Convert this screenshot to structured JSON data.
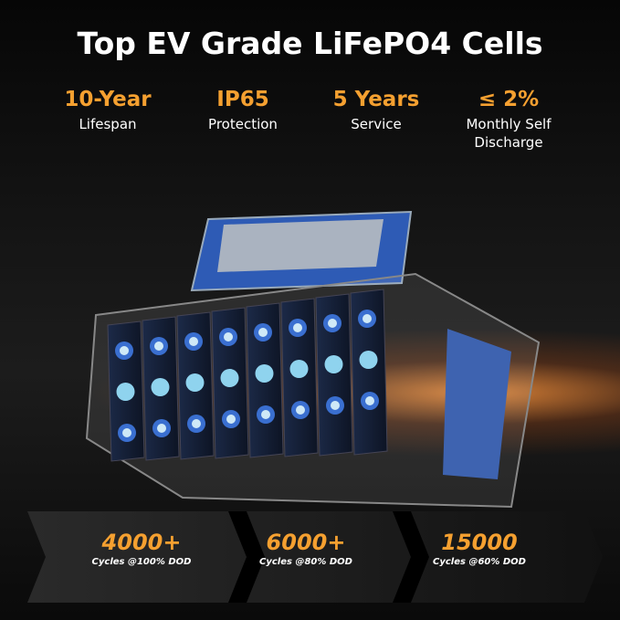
{
  "title": "Top EV Grade LiFePO4 Cells",
  "features": [
    {
      "value": "10-Year",
      "label": "Lifespan"
    },
    {
      "value": "IP65",
      "label": "Protection"
    },
    {
      "value": "5 Years",
      "label": "Service"
    },
    {
      "value": "≤ 2%",
      "label": "Monthly Self Discharge"
    }
  ],
  "cycles": [
    {
      "value": "4000+",
      "label": "Cycles @100% DOD"
    },
    {
      "value": "6000+",
      "label": "Cycles @80% DOD"
    },
    {
      "value": "15000",
      "label": "Cycles @60% DOD"
    }
  ]
}
